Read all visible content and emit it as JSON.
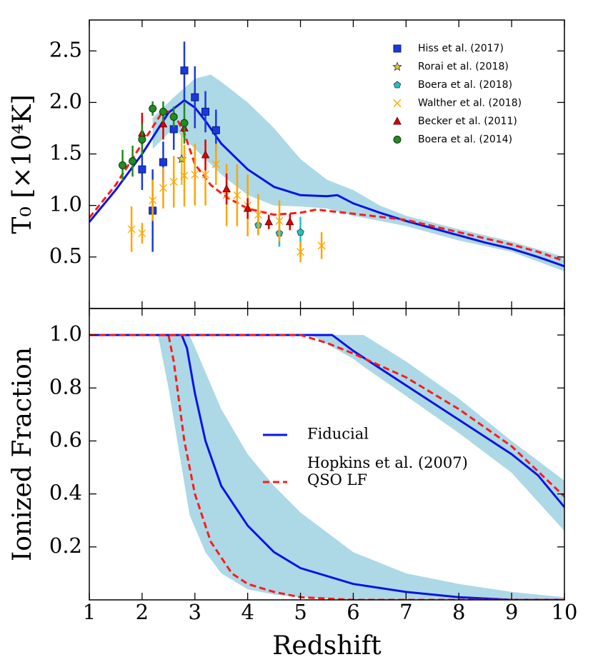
{
  "chart_data": [
    {
      "type": "line",
      "ylabel": "T₀ [×10⁴K]",
      "xlim": [
        1,
        10
      ],
      "ylim": [
        0,
        2.8
      ],
      "yticks": [
        0.5,
        {
          "value": 1,
          "label": "1.0"
        },
        1.5,
        {
          "value": 2,
          "label": "2.0"
        },
        2.5
      ],
      "legend": "upper right",
      "bands": [
        {
          "color": "#add8e6",
          "x": [
            2.2,
            2.6,
            3,
            3.3,
            3.5,
            4,
            4.5,
            5,
            5.5,
            6,
            6.5,
            7,
            8,
            9,
            10
          ],
          "lower": [
            1.55,
            1.75,
            1.55,
            1.4,
            1.3,
            1.1,
            1.0,
            0.99,
            0.97,
            0.9,
            0.85,
            0.8,
            0.66,
            0.55,
            0.36
          ],
          "upper": [
            1.85,
            2.05,
            2.23,
            2.27,
            2.2,
            2.0,
            1.75,
            1.45,
            1.25,
            1.15,
            1.0,
            0.9,
            0.77,
            0.65,
            0.5
          ]
        }
      ],
      "series": [
        {
          "color": "#0a14e6",
          "style": "solid",
          "x": [
            1,
            1.5,
            2,
            2.5,
            2.8,
            3,
            3.2,
            3.5,
            4,
            4.5,
            5,
            5.5,
            5.7,
            6,
            6.5,
            7,
            7.5,
            8,
            8.5,
            9,
            9.5,
            10
          ],
          "values": [
            0.84,
            1.15,
            1.5,
            1.9,
            2.02,
            1.95,
            1.82,
            1.6,
            1.35,
            1.18,
            1.1,
            1.09,
            1.1,
            1.02,
            0.93,
            0.85,
            0.78,
            0.71,
            0.64,
            0.58,
            0.5,
            0.41
          ]
        },
        {
          "color": "#ff1a1a",
          "style": "dashed",
          "x": [
            1,
            1.5,
            2,
            2.4,
            2.6,
            2.8,
            3,
            3.3,
            3.6,
            4,
            4.5,
            5,
            5.3,
            6,
            7,
            8,
            9,
            9.5,
            10
          ],
          "values": [
            0.88,
            1.2,
            1.6,
            1.92,
            1.9,
            1.7,
            1.4,
            1.2,
            1.08,
            0.97,
            0.91,
            0.93,
            0.96,
            0.92,
            0.86,
            0.74,
            0.62,
            0.55,
            0.46
          ]
        }
      ],
      "observations": [
        {
          "name": "Hiss et al. (2017)",
          "color": "#1a3ad8",
          "marker": "square",
          "x": [
            2.0,
            2.2,
            2.4,
            2.6,
            2.8,
            3.0,
            3.2,
            3.4
          ],
          "values": [
            1.35,
            0.95,
            1.42,
            1.74,
            2.31,
            2.05,
            1.91,
            1.73
          ],
          "errors": [
            0.2,
            0.4,
            0.2,
            0.2,
            0.28,
            0.3,
            0.2,
            0.2
          ]
        },
        {
          "name": "Rorai et al. (2018)",
          "color": "#d8c838",
          "marker": "star",
          "x": [
            2.75
          ],
          "values": [
            1.45
          ],
          "errors": [
            0.25
          ]
        },
        {
          "name": "Boera et al. (2018)",
          "color": "#20c0c0",
          "marker": "pentagon",
          "x": [
            4.2,
            4.6,
            5.0
          ],
          "values": [
            0.81,
            0.73,
            0.74
          ],
          "errors": [
            0.08,
            0.13,
            0.15
          ]
        },
        {
          "name": "Walther et al. (2018)",
          "color": "#ffa500",
          "marker": "x",
          "x": [
            1.8,
            2.0,
            2.2,
            2.4,
            2.6,
            2.8,
            3.0,
            3.2,
            3.4,
            3.6,
            3.8,
            4.0,
            4.2,
            4.6,
            5.0,
            5.4
          ],
          "values": [
            0.77,
            0.73,
            1.05,
            1.17,
            1.23,
            1.29,
            1.3,
            1.3,
            1.4,
            1.1,
            1.1,
            1.0,
            0.91,
            0.85,
            0.55,
            0.61
          ],
          "errors": [
            0.22,
            0.1,
            0.2,
            0.2,
            0.25,
            0.3,
            0.3,
            0.3,
            0.2,
            0.3,
            0.3,
            0.3,
            0.2,
            0.2,
            0.1,
            0.13
          ]
        },
        {
          "name": "Becker et al. (2011)",
          "color": "#e00000",
          "marker": "triangle",
          "x": [
            2.0,
            2.4,
            2.8,
            3.2,
            3.6,
            4.0,
            4.4,
            4.8
          ],
          "values": [
            1.7,
            1.79,
            1.75,
            1.49,
            1.16,
            0.97,
            0.84,
            0.84
          ],
          "errors": [
            0.2,
            0.15,
            0.1,
            0.15,
            0.15,
            0.1,
            0.07,
            0.08
          ]
        },
        {
          "name": "Boera et al. (2014)",
          "color": "#228b22",
          "marker": "circle",
          "x": [
            1.63,
            1.82,
            2.0,
            2.2,
            2.4,
            2.6,
            2.8
          ],
          "values": [
            1.39,
            1.43,
            1.64,
            1.94,
            1.91,
            1.86,
            1.8
          ],
          "errors": [
            0.15,
            0.15,
            0.15,
            0.07,
            0.1,
            0.1,
            0.2
          ]
        }
      ]
    },
    {
      "type": "line",
      "xlabel": "Redshift",
      "ylabel": "Ionized Fraction",
      "xlim": [
        1,
        10
      ],
      "ylim": [
        0,
        1.1
      ],
      "xticks": [
        1,
        2,
        3,
        4,
        5,
        6,
        7,
        8,
        9,
        10
      ],
      "yticks": [
        0.2,
        0.4,
        0.6,
        0.8,
        {
          "value": 1,
          "label": "1.0"
        }
      ],
      "legend": "center",
      "bands": [
        {
          "color": "#add8e6",
          "x": [
            2.3,
            2.5,
            2.9,
            3.2,
            3.5,
            4,
            4.5,
            5,
            6,
            7,
            8,
            9,
            10
          ],
          "lower": [
            1,
            0.8,
            0.32,
            0.18,
            0.1,
            0.04,
            0.02,
            0.01,
            0,
            0,
            0,
            0,
            0
          ],
          "upper": [
            1,
            1,
            1,
            0.86,
            0.72,
            0.55,
            0.43,
            0.33,
            0.18,
            0.1,
            0.06,
            0.03,
            0.01
          ]
        },
        {
          "color": "#add8e6",
          "x": [
            5.2,
            6,
            6.2,
            7,
            8,
            9,
            10
          ],
          "lower": [
            1,
            0.91,
            0.88,
            0.77,
            0.63,
            0.48,
            0.26
          ],
          "upper": [
            1,
            1,
            1,
            0.9,
            0.76,
            0.6,
            0.45
          ]
        }
      ],
      "series": [
        {
          "name": "Fiducial",
          "color": "#0a14e6",
          "style": "solid",
          "x": [
            1,
            2.75,
            2.85,
            3,
            3.2,
            3.5,
            4,
            4.5,
            5,
            6,
            7,
            8,
            9,
            10,
            null,
            1,
            5.6,
            6,
            7,
            8,
            9,
            9.5,
            10
          ],
          "values": [
            1,
            1,
            0.95,
            0.78,
            0.6,
            0.43,
            0.28,
            0.18,
            0.12,
            0.06,
            0.03,
            0.01,
            0,
            0,
            null,
            1,
            1,
            0.94,
            0.81,
            0.68,
            0.55,
            0.47,
            0.35
          ]
        },
        {
          "name": "Hopkins et al. (2007)\nQSO LF",
          "color": "#ff1a1a",
          "style": "dashed",
          "x": [
            1,
            2.5,
            2.6,
            2.8,
            3,
            3.3,
            3.7,
            4,
            4.5,
            5,
            6,
            10,
            null,
            1,
            5,
            5.5,
            6,
            7,
            8,
            9,
            10
          ],
          "values": [
            1,
            1,
            0.9,
            0.6,
            0.4,
            0.22,
            0.1,
            0.06,
            0.03,
            0.01,
            0,
            0,
            null,
            1,
            1,
            0.97,
            0.93,
            0.84,
            0.72,
            0.58,
            0.39
          ]
        }
      ]
    }
  ]
}
